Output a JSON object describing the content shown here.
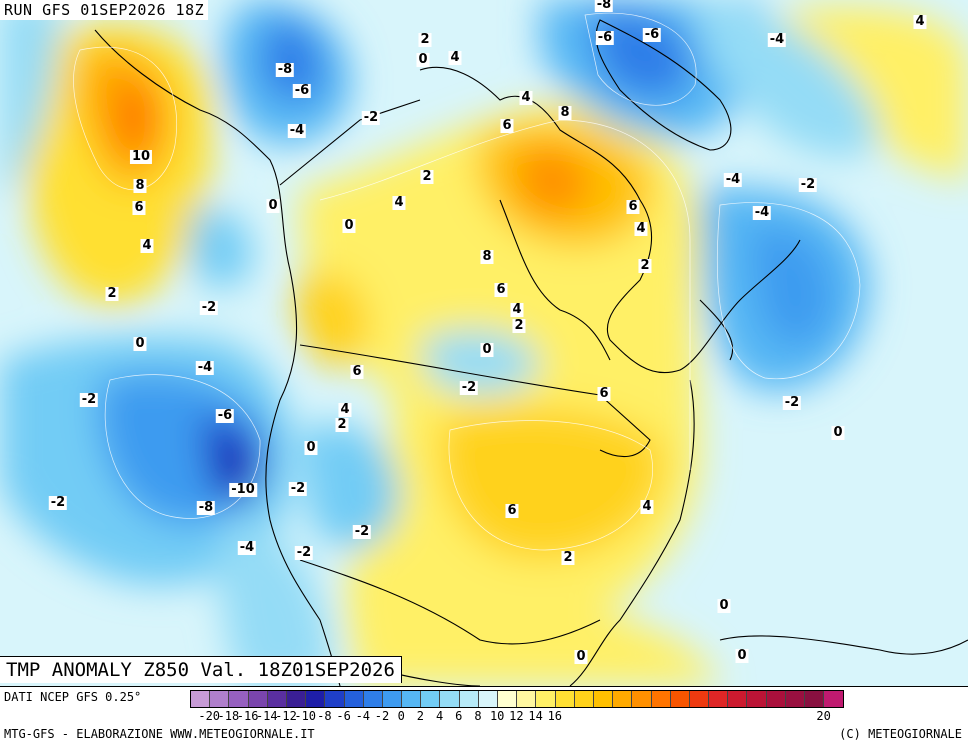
{
  "run_label": "RUN GFS 01SEP2026 18Z",
  "title": "TMP ANOMALY Z850 Val. 18Z01SEP2026",
  "source": "DATI NCEP GFS 0.25°",
  "credit_left": "MTG-GFS - ELABORAZIONE WWW.METEOGIORNALE.IT",
  "credit_right": "(C) METEOGIORNALE",
  "legend": {
    "colors": [
      "#c79bd6",
      "#b07fcc",
      "#9660c0",
      "#7a45ad",
      "#5a2fa0",
      "#3a1f95",
      "#1e1ea8",
      "#1f3fc8",
      "#2460dc",
      "#2f7ee8",
      "#3e9bf0",
      "#56b7f4",
      "#72ccf5",
      "#94dcf6",
      "#b7eaf8",
      "#d8f5fb",
      "#ffffd0",
      "#fff7a0",
      "#fff066",
      "#ffe033",
      "#ffd21a",
      "#ffc000",
      "#ffaa00",
      "#ff9000",
      "#ff7400",
      "#f85500",
      "#ee3a10",
      "#de2626",
      "#cc1a2f",
      "#bb1436",
      "#aa103c",
      "#991040",
      "#881040",
      "#c01a70"
    ],
    "ticks": [
      {
        "label": "-20",
        "value": -20
      },
      {
        "label": "-18",
        "value": -18
      },
      {
        "label": "-16",
        "value": -16
      },
      {
        "label": "-14",
        "value": -14
      },
      {
        "label": "-12",
        "value": -12
      },
      {
        "label": "-10",
        "value": -10
      },
      {
        "label": "-8",
        "value": -8
      },
      {
        "label": "-6",
        "value": -6
      },
      {
        "label": "-4",
        "value": -4
      },
      {
        "label": "-2",
        "value": -2
      },
      {
        "label": "0",
        "value": 0
      },
      {
        "label": "2",
        "value": 2
      },
      {
        "label": "4",
        "value": 4
      },
      {
        "label": "6",
        "value": 6
      },
      {
        "label": "8",
        "value": 8
      },
      {
        "label": "10",
        "value": 10
      },
      {
        "label": "12",
        "value": 12
      },
      {
        "label": "14",
        "value": 14
      },
      {
        "label": "16",
        "value": 16
      },
      {
        "label": "20",
        "value": 20
      }
    ]
  },
  "map_labels": [
    {
      "text": "2"
    },
    {
      "text": "0"
    },
    {
      "text": "4"
    },
    {
      "text": "-8"
    },
    {
      "text": "-6"
    },
    {
      "text": "-6"
    },
    {
      "text": "-4"
    },
    {
      "text": "4"
    },
    {
      "text": "-8"
    },
    {
      "text": "-6"
    },
    {
      "text": "-4"
    },
    {
      "text": "-2"
    },
    {
      "text": "10"
    },
    {
      "text": "8"
    },
    {
      "text": "6"
    },
    {
      "text": "2"
    },
    {
      "text": "4"
    },
    {
      "text": "6"
    },
    {
      "text": "8"
    },
    {
      "text": "0"
    },
    {
      "text": "4"
    },
    {
      "text": "0"
    },
    {
      "text": "-4"
    },
    {
      "text": "-2"
    },
    {
      "text": "6"
    },
    {
      "text": "4"
    },
    {
      "text": "-4"
    },
    {
      "text": "4"
    },
    {
      "text": "8"
    },
    {
      "text": "2"
    },
    {
      "text": "2"
    },
    {
      "text": "6"
    },
    {
      "text": "-2"
    },
    {
      "text": "4"
    },
    {
      "text": "2"
    },
    {
      "text": "0"
    },
    {
      "text": "-4"
    },
    {
      "text": "-2"
    },
    {
      "text": "6"
    },
    {
      "text": "-6"
    },
    {
      "text": "4"
    },
    {
      "text": "2"
    },
    {
      "text": "-2"
    },
    {
      "text": "6"
    },
    {
      "text": "-2"
    },
    {
      "text": "0"
    },
    {
      "text": "0"
    },
    {
      "text": "0"
    },
    {
      "text": "-10"
    },
    {
      "text": "-2"
    },
    {
      "text": "-2"
    },
    {
      "text": "-8"
    },
    {
      "text": "6"
    },
    {
      "text": "4"
    },
    {
      "text": "-2"
    },
    {
      "text": "-4"
    },
    {
      "text": "-2"
    },
    {
      "text": "2"
    },
    {
      "text": "0"
    },
    {
      "text": "0"
    },
    {
      "text": "0"
    }
  ]
}
